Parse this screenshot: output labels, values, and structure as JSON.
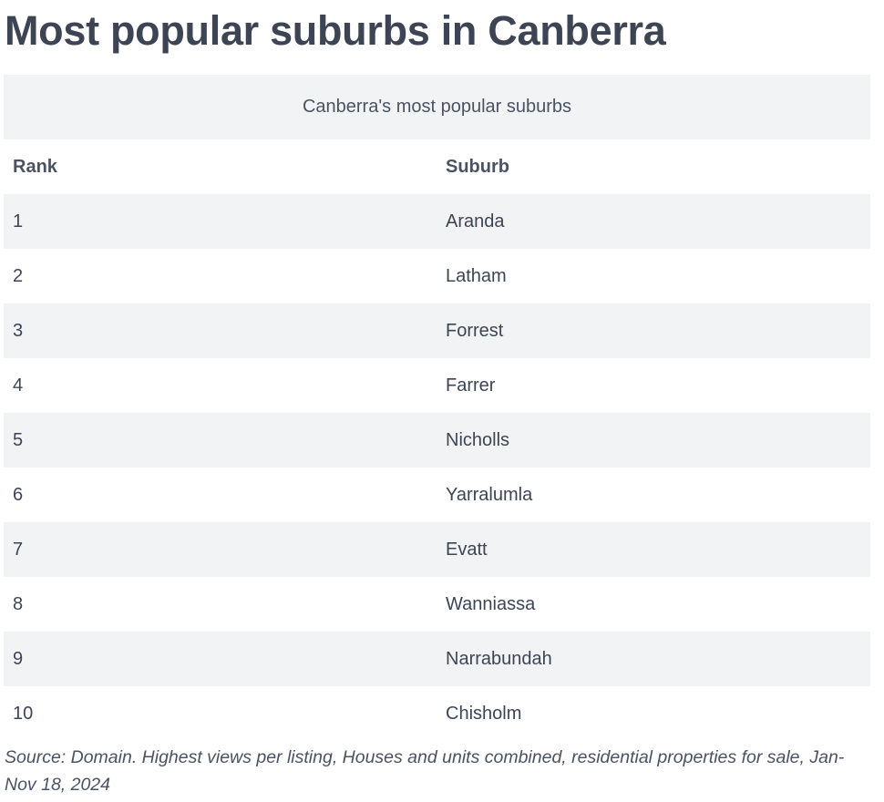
{
  "header": {
    "title": "Most popular suburbs in Canberra"
  },
  "table": {
    "caption": "Canberra's most popular suburbs",
    "columns": [
      "Rank",
      "Suburb"
    ],
    "rows": [
      [
        "1",
        "Aranda"
      ],
      [
        "2",
        "Latham"
      ],
      [
        "3",
        "Forrest"
      ],
      [
        "4",
        "Farrer"
      ],
      [
        "5",
        "Nicholls"
      ],
      [
        "6",
        "Yarralumla"
      ],
      [
        "7",
        "Evatt"
      ],
      [
        "8",
        "Wanniassa"
      ],
      [
        "9",
        "Narrabundah"
      ],
      [
        "10",
        "Chisholm"
      ]
    ]
  },
  "footer": {
    "source": "Source: Domain. Highest views per listing, Houses and units combined, residential properties for sale, Jan-Nov 18, 2024"
  }
}
